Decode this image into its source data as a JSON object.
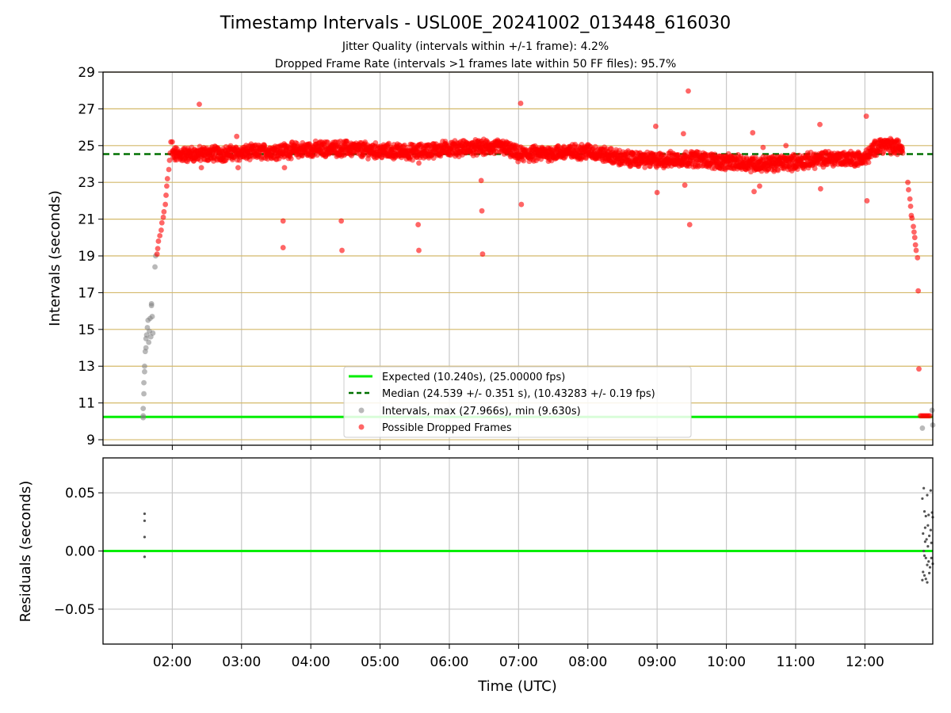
{
  "title": "Timestamp Intervals - USL00E_20241002_013448_616030",
  "subtitle_1": "Jitter Quality (intervals within +/-1 frame): 4.2%",
  "subtitle_2": "Dropped Frame Rate (intervals >1 frames late within 50 FF files): 95.7%",
  "colors": {
    "expected": "#00ee00",
    "median": "#007000",
    "intervals": "#808080",
    "dropped": "#ff0000",
    "grid_gold": "#d4b96a",
    "grid_gray": "#c8c8c8"
  },
  "chart_data": [
    {
      "type": "scatter",
      "ylabel": "Intervals (seconds)",
      "ylim": [
        8.7,
        29
      ],
      "yticks": [
        "9",
        "11",
        "13",
        "15",
        "17",
        "19",
        "21",
        "23",
        "25",
        "27",
        "29"
      ],
      "xlim_hours": [
        1.0,
        12.98
      ],
      "xticks": [
        "02:00",
        "03:00",
        "04:00",
        "05:00",
        "06:00",
        "07:00",
        "08:00",
        "09:00",
        "10:00",
        "11:00",
        "12:00"
      ],
      "expected_line": 10.24,
      "median_line": 24.539,
      "legend_position": "lower-center",
      "legend": [
        "Expected (10.240s), (25.00000 fps)",
        "Median (24.539 +/- 0.351 s), (10.43283 +/- 0.19 fps)",
        "Intervals, max (27.966s), min (9.630s)",
        "Possible Dropped Frames"
      ],
      "series": [
        {
          "name": "Intervals, max (27.966s), min (9.630s)",
          "points": [
            [
              1.58,
              10.2
            ],
            [
              1.58,
              10.3
            ],
            [
              1.58,
              10.7
            ],
            [
              1.59,
              11.5
            ],
            [
              1.59,
              12.1
            ],
            [
              1.6,
              12.7
            ],
            [
              1.6,
              13.0
            ],
            [
              1.61,
              13.8
            ],
            [
              1.62,
              14.0
            ],
            [
              1.62,
              14.5
            ],
            [
              1.63,
              14.7
            ],
            [
              1.64,
              15.1
            ],
            [
              1.65,
              15.5
            ],
            [
              1.66,
              14.3
            ],
            [
              1.67,
              14.9
            ],
            [
              1.68,
              15.6
            ],
            [
              1.69,
              14.6
            ],
            [
              1.7,
              16.3
            ],
            [
              1.7,
              16.4
            ],
            [
              1.71,
              15.7
            ],
            [
              1.72,
              14.8
            ],
            [
              1.75,
              18.4
            ],
            [
              1.76,
              19.0
            ],
            [
              12.83,
              9.63
            ],
            [
              12.97,
              10.6
            ],
            [
              12.98,
              9.8
            ]
          ]
        },
        {
          "name": "Possible Dropped Frames",
          "points": [
            [
              1.78,
              19.1
            ],
            [
              1.79,
              19.4
            ],
            [
              1.8,
              19.8
            ],
            [
              1.82,
              20.1
            ],
            [
              1.84,
              20.4
            ],
            [
              1.85,
              20.8
            ],
            [
              1.87,
              21.1
            ],
            [
              1.88,
              21.4
            ],
            [
              1.9,
              21.8
            ],
            [
              1.91,
              22.3
            ],
            [
              1.92,
              22.8
            ],
            [
              1.93,
              23.2
            ],
            [
              1.95,
              23.7
            ],
            [
              1.96,
              24.2
            ],
            [
              1.97,
              24.6
            ],
            [
              1.98,
              25.2
            ],
            [
              2.0,
              25.2
            ],
            [
              2.39,
              27.25
            ],
            [
              2.42,
              23.8
            ],
            [
              2.93,
              25.5
            ],
            [
              2.95,
              23.8
            ],
            [
              3.6,
              20.9
            ],
            [
              3.6,
              19.45
            ],
            [
              3.62,
              23.8
            ],
            [
              4.44,
              20.9
            ],
            [
              4.45,
              19.3
            ],
            [
              5.55,
              20.7
            ],
            [
              5.56,
              19.3
            ],
            [
              5.56,
              24.05
            ],
            [
              6.46,
              23.1
            ],
            [
              6.47,
              21.45
            ],
            [
              6.48,
              19.1
            ],
            [
              7.03,
              27.3
            ],
            [
              7.04,
              21.8
            ],
            [
              8.98,
              26.05
            ],
            [
              9.0,
              22.45
            ],
            [
              9.38,
              25.65
            ],
            [
              9.4,
              22.85
            ],
            [
              9.45,
              27.97
            ],
            [
              9.47,
              20.7
            ],
            [
              10.38,
              25.7
            ],
            [
              10.4,
              22.5
            ],
            [
              10.48,
              22.8
            ],
            [
              10.53,
              24.9
            ],
            [
              10.86,
              25.0
            ],
            [
              11.35,
              26.15
            ],
            [
              11.36,
              22.65
            ],
            [
              12.02,
              26.6
            ],
            [
              12.03,
              22.0
            ],
            [
              12.4,
              25.0
            ],
            [
              12.43,
              24.6
            ],
            [
              12.62,
              23.0
            ],
            [
              12.63,
              22.6
            ],
            [
              12.65,
              22.1
            ],
            [
              12.66,
              21.7
            ],
            [
              12.67,
              21.2
            ],
            [
              12.68,
              21.05
            ],
            [
              12.7,
              20.6
            ],
            [
              12.71,
              20.3
            ],
            [
              12.72,
              20.0
            ],
            [
              12.73,
              19.6
            ],
            [
              12.74,
              19.3
            ],
            [
              12.76,
              18.9
            ],
            [
              12.77,
              17.1
            ],
            [
              12.78,
              12.85
            ],
            [
              12.8,
              10.3
            ],
            [
              12.82,
              10.3
            ],
            [
              12.84,
              10.3
            ],
            [
              12.86,
              10.3
            ],
            [
              12.88,
              10.3
            ],
            [
              12.9,
              10.3
            ],
            [
              12.92,
              10.3
            ],
            [
              12.94,
              10.3
            ]
          ],
          "band": [
            [
              2.0,
              24.5
            ],
            [
              2.5,
              24.55
            ],
            [
              3.0,
              24.6
            ],
            [
              3.5,
              24.7
            ],
            [
              4.0,
              24.8
            ],
            [
              4.5,
              24.85
            ],
            [
              5.0,
              24.7
            ],
            [
              5.5,
              24.65
            ],
            [
              6.0,
              24.85
            ],
            [
              6.5,
              24.9
            ],
            [
              6.8,
              24.9
            ],
            [
              7.0,
              24.5
            ],
            [
              7.5,
              24.6
            ],
            [
              8.0,
              24.7
            ],
            [
              8.5,
              24.3
            ],
            [
              9.0,
              24.2
            ],
            [
              9.5,
              24.3
            ],
            [
              10.0,
              24.1
            ],
            [
              10.5,
              24.0
            ],
            [
              11.0,
              24.1
            ],
            [
              11.5,
              24.3
            ],
            [
              12.0,
              24.3
            ],
            [
              12.2,
              25.05
            ],
            [
              12.55,
              24.9
            ]
          ]
        }
      ]
    },
    {
      "type": "scatter",
      "ylabel": "Residuals (seconds)",
      "xlabel": "Time (UTC)",
      "ylim": [
        -0.08,
        0.08
      ],
      "yticks": [
        "0.05",
        "0.00",
        "−0.05"
      ],
      "zero_line": 0.0,
      "series": [
        {
          "name": "Residuals",
          "points": [
            [
              1.6,
              0.032
            ],
            [
              1.6,
              0.026
            ],
            [
              1.6,
              0.012
            ],
            [
              1.6,
              -0.005
            ],
            [
              12.83,
              0.045
            ],
            [
              12.85,
              0.054
            ],
            [
              12.86,
              0.034
            ],
            [
              12.88,
              0.03
            ],
            [
              12.9,
              0.048
            ],
            [
              12.92,
              0.031
            ],
            [
              12.95,
              0.052
            ],
            [
              12.97,
              0.033
            ],
            [
              12.98,
              0.029
            ],
            [
              12.84,
              0.015
            ],
            [
              12.87,
              0.008
            ],
            [
              12.89,
              0.01
            ],
            [
              12.91,
              0.004
            ],
            [
              12.93,
              0.013
            ],
            [
              12.96,
              0.007
            ],
            [
              12.85,
              0.0
            ],
            [
              12.86,
              -0.004
            ],
            [
              12.88,
              -0.006
            ],
            [
              12.9,
              -0.012
            ],
            [
              12.92,
              -0.009
            ],
            [
              12.94,
              -0.014
            ],
            [
              12.84,
              -0.018
            ],
            [
              12.86,
              -0.021
            ],
            [
              12.88,
              -0.024
            ],
            [
              12.9,
              -0.027
            ],
            [
              12.93,
              -0.019
            ],
            [
              12.96,
              -0.006
            ],
            [
              12.98,
              -0.011
            ],
            [
              12.83,
              -0.025
            ],
            [
              12.87,
              0.02
            ],
            [
              12.95,
              0.018
            ],
            [
              12.91,
              0.022
            ]
          ]
        }
      ]
    }
  ]
}
